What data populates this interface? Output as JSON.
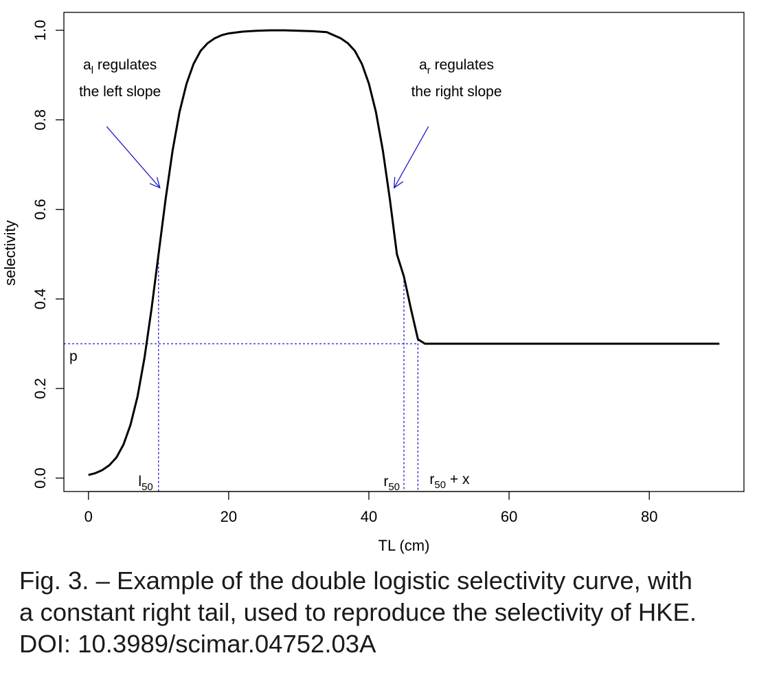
{
  "chart_data": {
    "type": "line",
    "xlabel": "TL (cm)",
    "ylabel": "selectivity",
    "xlim": [
      -3.5,
      93.5
    ],
    "ylim": [
      -0.03,
      1.04
    ],
    "x_ticks": [
      0,
      20,
      40,
      60,
      80
    ],
    "y_ticks": [
      0.0,
      0.2,
      0.4,
      0.6,
      0.8,
      1.0
    ],
    "x_tick_labels": [
      "0",
      "20",
      "40",
      "60",
      "80"
    ],
    "y_tick_labels": [
      "0.0",
      "0.2",
      "0.4",
      "0.6",
      "0.8",
      "1.0"
    ],
    "grid": false,
    "series": [
      {
        "color": "#000000",
        "x": [
          0,
          1,
          2,
          3,
          4,
          5,
          6,
          7,
          8,
          9,
          10,
          11,
          12,
          13,
          14,
          15,
          16,
          17,
          18,
          19,
          20,
          22,
          24,
          26,
          28,
          30,
          32,
          34,
          36,
          37,
          38,
          39,
          40,
          41,
          42,
          43,
          44,
          45,
          46,
          47,
          48,
          50,
          60,
          70,
          80,
          90
        ],
        "y": [
          0.007,
          0.011,
          0.018,
          0.029,
          0.046,
          0.075,
          0.119,
          0.182,
          0.269,
          0.378,
          0.5,
          0.622,
          0.731,
          0.818,
          0.881,
          0.925,
          0.954,
          0.971,
          0.982,
          0.989,
          0.993,
          0.997,
          0.999,
          1.0,
          1.0,
          0.999,
          0.998,
          0.996,
          0.982,
          0.971,
          0.954,
          0.925,
          0.881,
          0.818,
          0.731,
          0.622,
          0.5,
          0.45,
          0.378,
          0.31,
          0.3,
          0.3,
          0.3,
          0.3,
          0.3,
          0.3
        ]
      }
    ],
    "reference_lines": {
      "color": "#1a1acc",
      "horizontal": {
        "y": 0.3,
        "label": "p"
      },
      "vertical": [
        {
          "x": 10,
          "label_main": "l",
          "label_sub": "50"
        },
        {
          "x": 45,
          "label_main": "r",
          "label_sub": "50"
        },
        {
          "x": 47,
          "label_main": "r",
          "label_sub": "50",
          "label_suffix": " + x"
        }
      ]
    },
    "annotations": [
      {
        "line1_main": "a",
        "line1_sub": "l",
        "line1_rest": " regulates",
        "line2": "the left slope",
        "text_x": 4.5,
        "text_y": 0.88,
        "arrow_from": [
          2.6,
          0.785
        ],
        "arrow_to": [
          10.2,
          0.648
        ]
      },
      {
        "line1_main": "a",
        "line1_sub": "r",
        "line1_rest": " regulates",
        "line2": "the right slope",
        "text_x": 52.5,
        "text_y": 0.88,
        "arrow_from": [
          48.5,
          0.785
        ],
        "arrow_to": [
          43.6,
          0.648
        ]
      }
    ]
  },
  "caption": {
    "line1": "Fig. 3. – Example of the double logistic selectivity curve, with",
    "line2": "a constant right tail, used to reproduce the selectivity of HKE.",
    "line3": "DOI: 10.3989/scimar.04752.03A"
  }
}
